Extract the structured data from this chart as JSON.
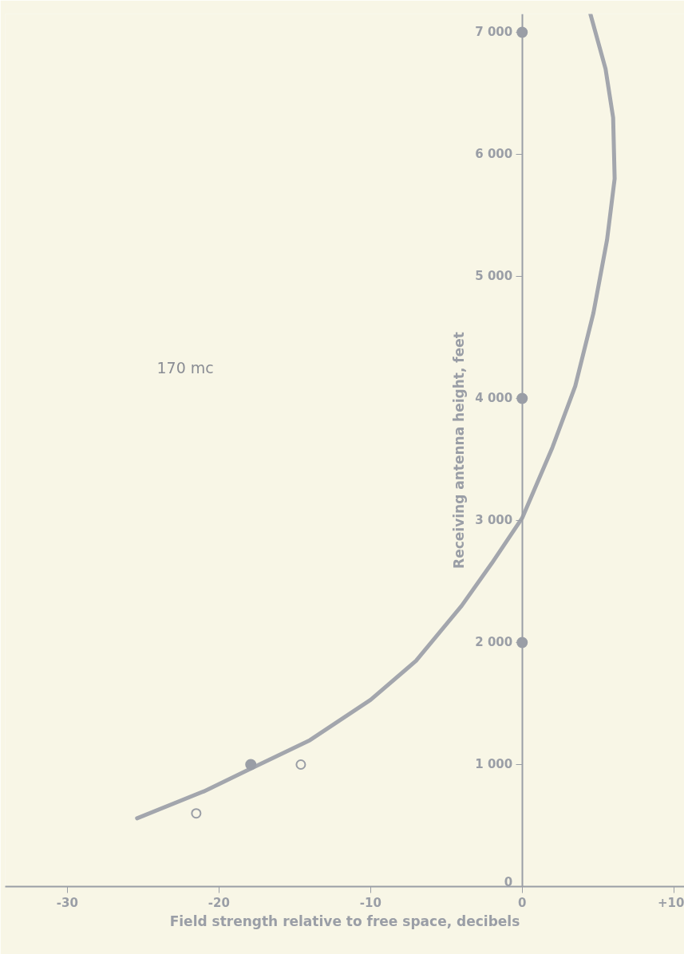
{
  "chart_data": {
    "type": "line",
    "xlabel": "Field strength relative to free space, decibels",
    "ylabel": "Receiving antenna height, feet",
    "annotations": [
      "170 mc"
    ],
    "xlim": [
      -34.1,
      10.7
    ],
    "ylim": [
      0,
      7150
    ],
    "xticks": [
      -30,
      -20,
      -10,
      0,
      {
        "value": 10,
        "label": "+10"
      }
    ],
    "yticks": [
      {
        "value": 0,
        "label": "0"
      },
      {
        "value": 1000,
        "label": "1 000"
      },
      {
        "value": 2000,
        "label": "2 000"
      },
      {
        "value": 3000,
        "label": "3 000"
      },
      {
        "value": 4000,
        "label": "4 000"
      },
      {
        "value": 5000,
        "label": "5 000"
      },
      {
        "value": 6000,
        "label": "6 000"
      },
      {
        "value": 7000,
        "label": "7 000"
      }
    ],
    "grid": false,
    "line_style": "solid",
    "series": [
      {
        "color": "#a3a6ad",
        "x": [
          -25.4,
          -21,
          -18,
          -14,
          -10,
          -7,
          -4,
          -2,
          0,
          2,
          3.5,
          4.7,
          5.6,
          6.1,
          6.0,
          5.5,
          4.5
        ],
        "values": [
          560,
          780,
          960,
          1200,
          1530,
          1850,
          2300,
          2650,
          3020,
          3600,
          4100,
          4700,
          5300,
          5800,
          6300,
          6700,
          7150
        ]
      },
      {
        "type": "scatter",
        "color": "#9a9ea6",
        "marker": "circle",
        "x": [
          0,
          0,
          0,
          -17.9
        ],
        "values": [
          2000,
          4000,
          7000,
          1000
        ]
      },
      {
        "type": "scatter",
        "color": "#9a9ea6",
        "marker": "circle",
        "x": [
          -14.6,
          -21.5
        ],
        "values": [
          1000,
          600
        ]
      }
    ]
  }
}
